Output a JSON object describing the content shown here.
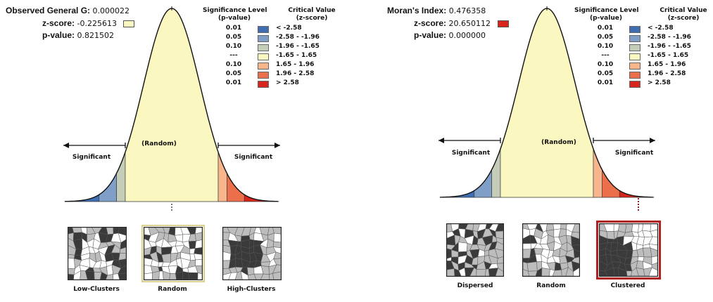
{
  "colors": {
    "z_neg_258": "#3f6fb2",
    "z_neg_196": "#7f9fc6",
    "z_neg_165": "#c3cdb7",
    "z_random": "#fbf7c0",
    "z_pos_165": "#f6b58a",
    "z_pos_196": "#ec6f4b",
    "z_pos_258": "#d8251c",
    "selected_left": "#e8e2a5",
    "selected_right": "#b02020"
  },
  "legend": {
    "sig_header_1": "Significance Level",
    "sig_header_2": "(p-value)",
    "crit_header_1": "Critical Value",
    "crit_header_2": "(z-score)",
    "rows": [
      {
        "p": "0.01",
        "z": "< -2.58",
        "color": "#3f6fb2"
      },
      {
        "p": "0.05",
        "z": "-2.58 - -1.96",
        "color": "#7f9fc6"
      },
      {
        "p": "0.10",
        "z": "-1.96 - -1.65",
        "color": "#c3cdb7"
      },
      {
        "p": "---",
        "z": "-1.65 - 1.65",
        "color": "#fbf7c0"
      },
      {
        "p": "0.10",
        "z": "1.65 - 1.96",
        "color": "#f6b58a"
      },
      {
        "p": "0.05",
        "z": "1.96 - 2.58",
        "color": "#ec6f4b"
      },
      {
        "p": "0.01",
        "z": "> 2.58",
        "color": "#d8251c"
      }
    ]
  },
  "left": {
    "stat_label": "Observed General G:",
    "stat_value": "0.000022",
    "z_label": "z-score:",
    "z_value": "-0.225613",
    "p_label": "p-value:",
    "p_value": "0.821502",
    "z_color": "#fbf7c0",
    "random_label": "(Random)",
    "sig_left": "Significant",
    "sig_right": "Significant",
    "captions": [
      "Low-Clusters",
      "Random",
      "High-Clusters"
    ],
    "selected_index": 1
  },
  "right": {
    "stat_label": "Moran's Index:",
    "stat_value": "0.476358",
    "z_label": "z-score:",
    "z_value": "20.650112",
    "p_label": "p-value:",
    "p_value": "0.000000",
    "z_color": "#d8251c",
    "random_label": "(Random)",
    "sig_left": "Significant",
    "sig_right": "Significant",
    "captions": [
      "Dispersed",
      "Random",
      "Clustered"
    ],
    "selected_index": 2
  }
}
